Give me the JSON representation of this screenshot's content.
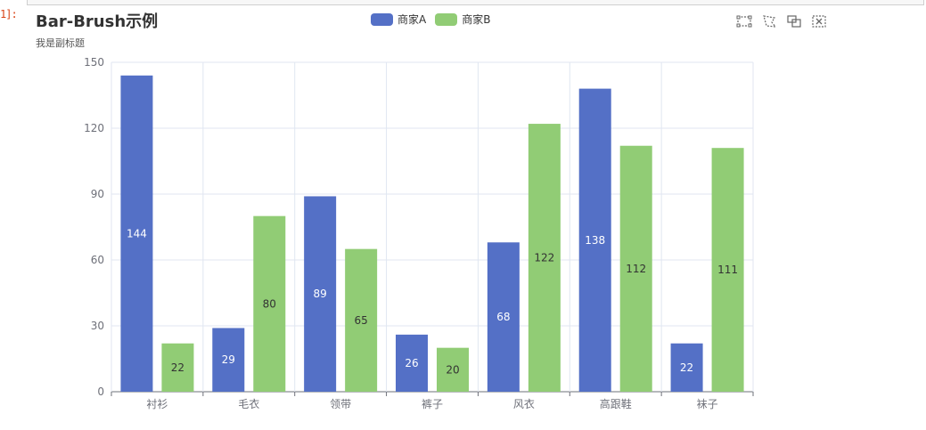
{
  "cell": {
    "prompt": "1]:"
  },
  "chart_data": {
    "type": "bar",
    "title": "Bar-Brush示例",
    "subtitle": "我是副标题",
    "categories": [
      "衬衫",
      "毛衣",
      "领带",
      "裤子",
      "风衣",
      "高跟鞋",
      "袜子"
    ],
    "series": [
      {
        "name": "商家A",
        "color": "#5470c6",
        "label_color": "#ffffff",
        "values": [
          144,
          29,
          89,
          26,
          68,
          138,
          22
        ]
      },
      {
        "name": "商家B",
        "color": "#91cc75",
        "label_color": "#333333",
        "values": [
          22,
          80,
          65,
          20,
          122,
          112,
          111
        ]
      }
    ],
    "ylim": [
      0,
      150
    ],
    "yticks": [
      0,
      30,
      60,
      90,
      120,
      150
    ],
    "grid": true,
    "legend_position": "top-center"
  },
  "toolbox": {
    "tools": [
      {
        "name": "rect-select-icon"
      },
      {
        "name": "polygon-select-icon"
      },
      {
        "name": "keep-selection-icon"
      },
      {
        "name": "clear-selection-icon"
      }
    ]
  }
}
